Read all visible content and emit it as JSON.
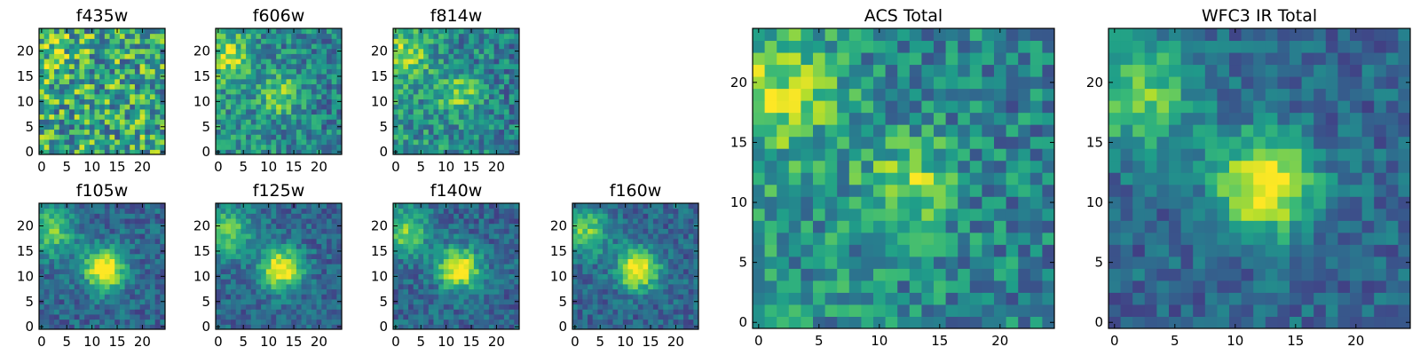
{
  "chart_data": [
    {
      "type": "heatmap",
      "title": "f435w",
      "pattern": "noise",
      "x_ticks": [
        0,
        5,
        10,
        15,
        20
      ],
      "y_ticks": [
        0,
        5,
        10,
        15,
        20
      ],
      "xlim": [
        0,
        25
      ],
      "ylim": [
        0,
        25
      ],
      "grid": false,
      "colormap": "viridis"
    },
    {
      "type": "heatmap",
      "title": "f606w",
      "pattern": "faint_source",
      "x_ticks": [
        0,
        5,
        10,
        15,
        20
      ],
      "y_ticks": [
        0,
        5,
        10,
        15,
        20
      ],
      "xlim": [
        0,
        25
      ],
      "ylim": [
        0,
        25
      ],
      "grid": false,
      "colormap": "viridis"
    },
    {
      "type": "heatmap",
      "title": "f814w",
      "pattern": "faint_source",
      "x_ticks": [
        0,
        5,
        10,
        15,
        20
      ],
      "y_ticks": [
        0,
        5,
        10,
        15,
        20
      ],
      "xlim": [
        0,
        25
      ],
      "ylim": [
        0,
        25
      ],
      "grid": false,
      "colormap": "viridis"
    },
    {
      "type": "heatmap",
      "title": "f105w",
      "pattern": "source",
      "x_ticks": [
        0,
        5,
        10,
        15,
        20
      ],
      "y_ticks": [
        0,
        5,
        10,
        15,
        20
      ],
      "xlim": [
        0,
        25
      ],
      "ylim": [
        0,
        25
      ],
      "grid": false,
      "colormap": "viridis"
    },
    {
      "type": "heatmap",
      "title": "f125w",
      "pattern": "source",
      "x_ticks": [
        0,
        5,
        10,
        15,
        20
      ],
      "y_ticks": [
        0,
        5,
        10,
        15,
        20
      ],
      "xlim": [
        0,
        25
      ],
      "ylim": [
        0,
        25
      ],
      "grid": false,
      "colormap": "viridis"
    },
    {
      "type": "heatmap",
      "title": "f140w",
      "pattern": "source",
      "x_ticks": [
        0,
        5,
        10,
        15,
        20
      ],
      "y_ticks": [
        0,
        5,
        10,
        15,
        20
      ],
      "xlim": [
        0,
        25
      ],
      "ylim": [
        0,
        25
      ],
      "grid": false,
      "colormap": "viridis"
    },
    {
      "type": "heatmap",
      "title": "f160w",
      "pattern": "source",
      "x_ticks": [
        0,
        5,
        10,
        15,
        20
      ],
      "y_ticks": [
        0,
        5,
        10,
        15,
        20
      ],
      "xlim": [
        0,
        25
      ],
      "ylim": [
        0,
        25
      ],
      "grid": false,
      "colormap": "viridis"
    },
    {
      "type": "heatmap",
      "title": "ACS Total",
      "pattern": "faint_source",
      "x_ticks": [
        0,
        5,
        10,
        15,
        20
      ],
      "y_ticks": [
        0,
        5,
        10,
        15,
        20
      ],
      "xlim": [
        0,
        25
      ],
      "ylim": [
        0,
        25
      ],
      "grid": false,
      "colormap": "viridis"
    },
    {
      "type": "heatmap",
      "title": "WFC3 IR Total",
      "pattern": "source",
      "x_ticks": [
        0,
        5,
        10,
        15,
        20
      ],
      "y_ticks": [
        0,
        5,
        10,
        15,
        20
      ],
      "xlim": [
        0,
        25
      ],
      "ylim": [
        0,
        25
      ],
      "grid": false,
      "colormap": "viridis"
    }
  ]
}
